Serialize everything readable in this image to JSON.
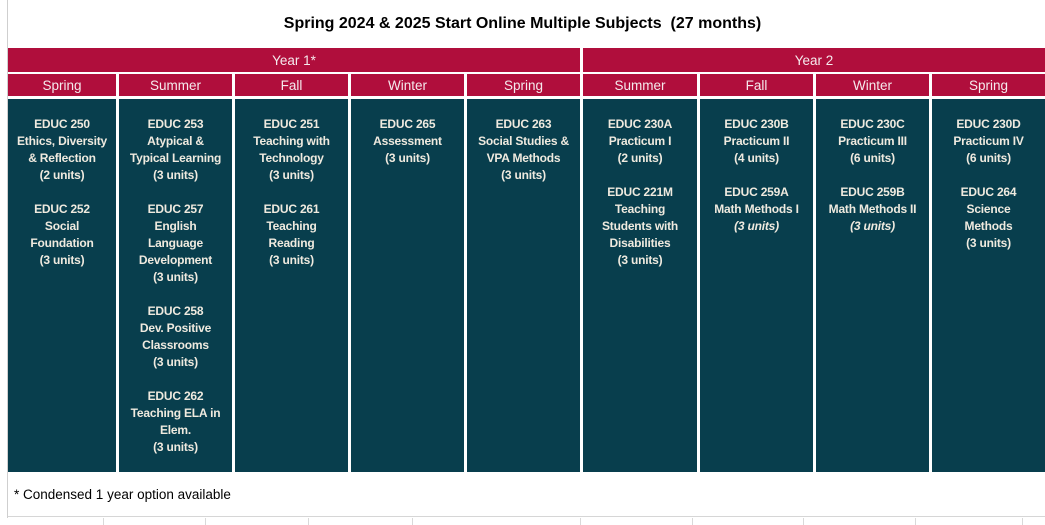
{
  "title": "Spring 2024 & 2025 Start Online Multiple Subjects  (27 months)",
  "footnote": "* Condensed 1 year option available",
  "colors": {
    "crimson": "#B00E3C",
    "teal": "#083E4D",
    "header_text": "#F5EAED",
    "cell_text": "#EFEADF",
    "grid_line": "#D9D9D9"
  },
  "year_headers": [
    {
      "label": "Year 1*",
      "span": 5
    },
    {
      "label": "Year 2",
      "span": 4
    }
  ],
  "columns": [
    {
      "season": "Spring",
      "courses": [
        {
          "code": "EDUC 250",
          "title": "Ethics, Diversity\n& Reflection",
          "units": "(2 units)"
        },
        {
          "code": "EDUC 252",
          "title": "Social\nFoundation",
          "units": "(3 units)"
        }
      ]
    },
    {
      "season": "Summer",
      "courses": [
        {
          "code": "EDUC 253",
          "title": "Atypical &\nTypical Learning",
          "units": "(3 units)"
        },
        {
          "code": "EDUC 257",
          "title": "English\nLanguage\nDevelopment",
          "units": "(3 units)"
        },
        {
          "code": "EDUC 258",
          "title": "Dev. Positive\nClassrooms",
          "units": "(3 units)"
        },
        {
          "code": "EDUC 262",
          "title": "Teaching ELA in\nElem.",
          "units": "(3 units)"
        }
      ]
    },
    {
      "season": "Fall",
      "courses": [
        {
          "code": "EDUC 251",
          "title": "Teaching with\nTechnology",
          "units": "(3 units)"
        },
        {
          "code": "EDUC 261",
          "title": "Teaching\nReading",
          "units": "(3 units)"
        }
      ]
    },
    {
      "season": "Winter",
      "courses": [
        {
          "code": "EDUC 265",
          "title": "Assessment",
          "units": "(3 units)"
        }
      ]
    },
    {
      "season": "Spring",
      "courses": [
        {
          "code": "EDUC 263",
          "title": "Social Studies &\nVPA Methods",
          "units": "(3 units)"
        }
      ]
    },
    {
      "season": "Summer",
      "courses": [
        {
          "code": "EDUC 230A",
          "title": "Practicum I",
          "units": "(2 units)"
        },
        {
          "code": "EDUC 221M",
          "title": "Teaching\nStudents with\nDisabilities",
          "units": "(3 units)"
        }
      ]
    },
    {
      "season": "Fall",
      "courses": [
        {
          "code": "EDUC 230B",
          "title": "Practicum II",
          "units": "(4 units)"
        },
        {
          "code": "EDUC 259A",
          "title": "Math Methods I",
          "units": "(3 units)",
          "units_italic": true
        }
      ]
    },
    {
      "season": "Winter",
      "courses": [
        {
          "code": "EDUC 230C",
          "title": "Practicum III",
          "units": "(6 units)"
        },
        {
          "code": "EDUC 259B",
          "title": "Math Methods II",
          "units": "(3 units)",
          "units_italic": true
        }
      ]
    },
    {
      "season": "Spring",
      "courses": [
        {
          "code": "EDUC 230D",
          "title": "Practicum IV",
          "units": "(6 units)"
        },
        {
          "code": "EDUC 264",
          "title": "Science\nMethods",
          "units": "(3 units)"
        }
      ]
    }
  ]
}
